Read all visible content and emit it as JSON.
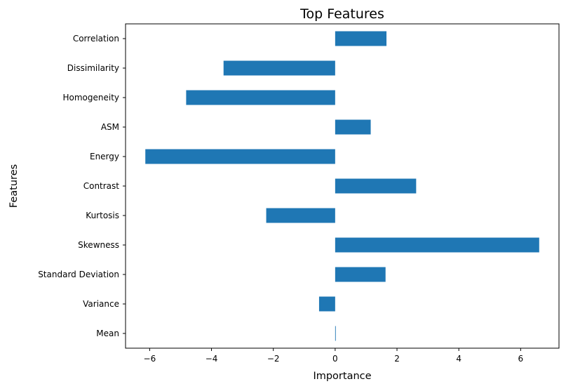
{
  "chart_data": {
    "type": "bar",
    "orientation": "horizontal",
    "title": "Top Features",
    "xlabel": "Importance",
    "ylabel": "Features",
    "categories": [
      "Mean",
      "Variance",
      "Standard Deviation",
      "Skewness",
      "Kurtosis",
      "Contrast",
      "Energy",
      "ASM",
      "Homogeneity",
      "Dissimilarity",
      "Correlation"
    ],
    "values": [
      0.02,
      -0.52,
      1.63,
      6.6,
      -2.23,
      2.62,
      -6.14,
      1.15,
      -4.82,
      -3.61,
      1.66
    ],
    "xlim": [
      -6.78,
      7.24
    ],
    "xticks": [
      -6,
      -4,
      -2,
      0,
      2,
      4,
      6
    ],
    "xtick_labels": [
      "−6",
      "−4",
      "−2",
      "0",
      "2",
      "4",
      "6"
    ],
    "bar_color": "#1f77b4",
    "grid": false,
    "legend": "none"
  }
}
